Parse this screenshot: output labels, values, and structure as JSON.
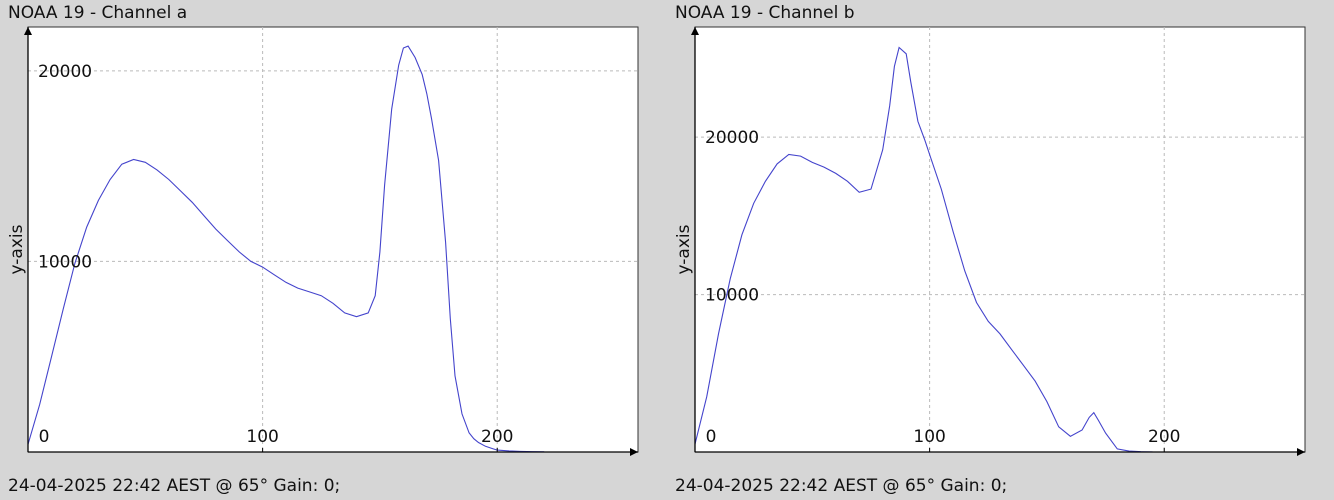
{
  "chart_data": [
    {
      "type": "line",
      "title": "NOAA 19 - Channel a",
      "xlabel": "",
      "ylabel": "y-axis",
      "footer": "24-04-2025 22:42 AEST @ 65° Gain: 0;",
      "xlim": [
        0,
        260
      ],
      "ylim": [
        0,
        22300
      ],
      "x_ticks": [
        0,
        100,
        200
      ],
      "y_ticks": [
        10000,
        20000
      ],
      "grid": true,
      "line_color": "#4444cc",
      "series": [
        {
          "x": [
            0,
            5,
            10,
            15,
            20,
            25,
            30,
            35,
            40,
            45,
            50,
            55,
            60,
            65,
            70,
            75,
            80,
            85,
            90,
            95,
            100,
            105,
            110,
            115,
            120,
            125,
            130,
            135,
            140,
            145,
            148,
            150,
            152,
            155,
            158,
            160,
            162,
            165,
            168,
            170,
            172,
            175,
            178,
            180,
            182,
            185,
            188,
            190,
            192,
            195,
            198,
            200,
            205,
            210,
            215,
            220
          ],
          "y": [
            400,
            2500,
            5000,
            7500,
            9900,
            11800,
            13200,
            14300,
            15100,
            15350,
            15200,
            14800,
            14300,
            13700,
            13100,
            12400,
            11700,
            11100,
            10500,
            10000,
            9700,
            9300,
            8900,
            8600,
            8400,
            8200,
            7800,
            7300,
            7100,
            7300,
            8200,
            10500,
            14000,
            18000,
            20300,
            21200,
            21300,
            20700,
            19800,
            18800,
            17500,
            15300,
            11000,
            7000,
            4000,
            2000,
            1000,
            700,
            500,
            300,
            180,
            100,
            60,
            30,
            15,
            10
          ]
        }
      ]
    },
    {
      "type": "line",
      "title": "NOAA 19 - Channel b",
      "xlabel": "",
      "ylabel": "y-axis",
      "footer": "24-04-2025 22:42 AEST @ 65° Gain: 0;",
      "xlim": [
        0,
        260
      ],
      "ylim": [
        0,
        27000
      ],
      "x_ticks": [
        0,
        100,
        200
      ],
      "y_ticks": [
        10000,
        20000
      ],
      "grid": true,
      "line_color": "#4444cc",
      "series": [
        {
          "x": [
            0,
            5,
            10,
            15,
            20,
            25,
            30,
            35,
            40,
            45,
            50,
            55,
            60,
            65,
            70,
            75,
            80,
            83,
            85,
            87,
            90,
            92,
            95,
            98,
            100,
            105,
            110,
            115,
            120,
            125,
            130,
            135,
            140,
            145,
            150,
            155,
            160,
            165,
            168,
            170,
            172,
            175,
            178,
            180,
            185,
            190,
            195
          ],
          "y": [
            500,
            3500,
            7500,
            11000,
            13800,
            15800,
            17200,
            18300,
            18900,
            18800,
            18400,
            18100,
            17700,
            17200,
            16500,
            16700,
            19200,
            22000,
            24500,
            25700,
            25300,
            23500,
            21000,
            19800,
            18900,
            16700,
            14000,
            11500,
            9500,
            8300,
            7500,
            6500,
            5500,
            4500,
            3200,
            1600,
            1000,
            1400,
            2200,
            2500,
            2000,
            1200,
            600,
            200,
            60,
            20,
            5
          ]
        }
      ]
    }
  ]
}
